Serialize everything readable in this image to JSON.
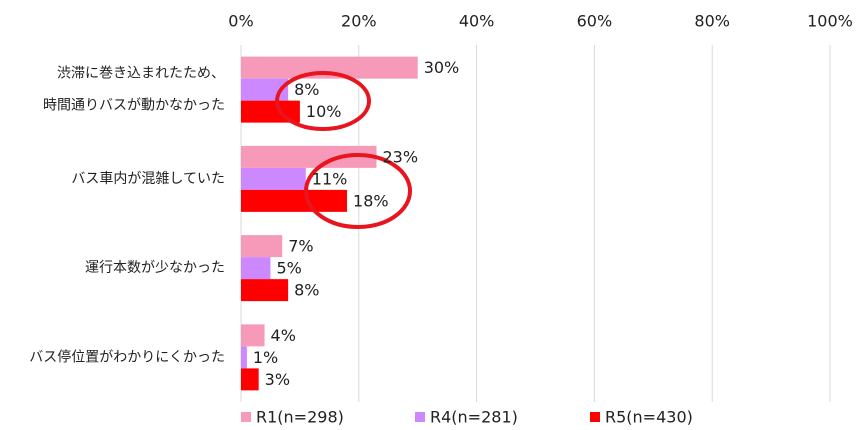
{
  "chart_data": {
    "type": "bar",
    "orientation": "horizontal",
    "categories": [
      "渋滞に巻き込まれたため、\n時間通りバスが動かなかった",
      "バス車内が混雑していた",
      "運行本数が少なかった",
      "バス停位置がわかりにくかった"
    ],
    "series": [
      {
        "name": "R1(n=298)",
        "color": "#f799b8",
        "values": [
          30,
          23,
          7,
          4
        ],
        "value_labels": [
          "30%",
          "23%",
          "7%",
          "4%"
        ]
      },
      {
        "name": "R4(n=281)",
        "color": "#cc88ff",
        "values": [
          8,
          11,
          5,
          1
        ],
        "value_labels": [
          "8%",
          "11%",
          "5%",
          "1%"
        ]
      },
      {
        "name": "R5(n=430)",
        "color": "#ff0000",
        "values": [
          10,
          18,
          8,
          3
        ],
        "value_labels": [
          "10%",
          "18%",
          "8%",
          "3%"
        ]
      }
    ],
    "xlim": [
      0,
      100
    ],
    "xticks": [
      {
        "value": 0,
        "label": "0%"
      },
      {
        "value": 20,
        "label": "20%"
      },
      {
        "value": 40,
        "label": "40%"
      },
      {
        "value": 60,
        "label": "60%"
      },
      {
        "value": 80,
        "label": "80%"
      },
      {
        "value": 100,
        "label": "100%"
      }
    ],
    "grid": true,
    "legend": "bottom"
  }
}
